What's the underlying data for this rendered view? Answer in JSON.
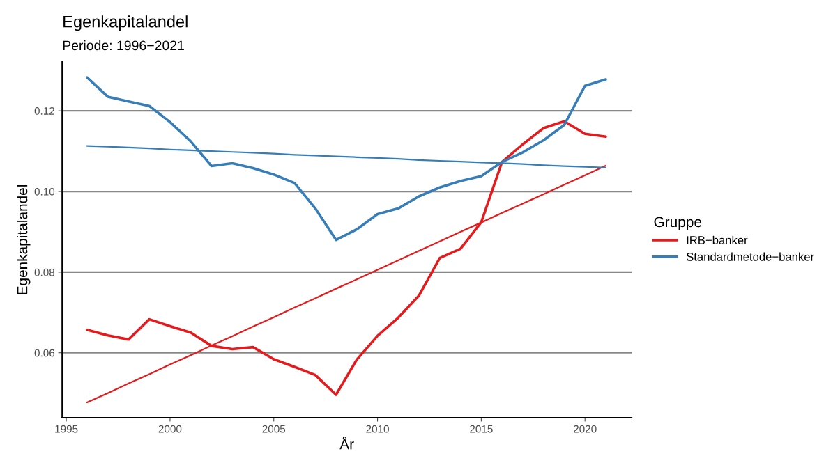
{
  "chart_data": {
    "type": "line",
    "title": "Egenkapitalandel",
    "subtitle": "Periode: 1996−2021",
    "xlabel": "År",
    "ylabel": "Egenkapitalandel",
    "legend_title": "Gruppe",
    "x": [
      1996,
      1997,
      1998,
      1999,
      2000,
      2001,
      2002,
      2003,
      2004,
      2005,
      2006,
      2007,
      2008,
      2009,
      2010,
      2011,
      2012,
      2013,
      2014,
      2015,
      2016,
      2017,
      2018,
      2019,
      2020,
      2021
    ],
    "series": [
      {
        "name": "IRB−banker",
        "color": "#e41a1c",
        "values": [
          0.0657,
          0.0643,
          0.0633,
          0.0683,
          0.0666,
          0.065,
          0.0617,
          0.0609,
          0.0614,
          0.0584,
          0.0565,
          0.0545,
          0.0496,
          0.0583,
          0.0642,
          0.0687,
          0.0742,
          0.0835,
          0.0858,
          0.0924,
          0.1073,
          0.1117,
          0.1157,
          0.1174,
          0.1143,
          0.1136
        ]
      },
      {
        "name": "Standardmetode−banker",
        "color": "#377eb8",
        "values": [
          0.1283,
          0.1235,
          0.1223,
          0.1212,
          0.1172,
          0.1124,
          0.1063,
          0.107,
          0.1058,
          0.1042,
          0.1021,
          0.0958,
          0.088,
          0.0906,
          0.0944,
          0.0958,
          0.0988,
          0.101,
          0.1026,
          0.1038,
          0.1073,
          0.1097,
          0.1127,
          0.1165,
          0.1262,
          0.1278
        ]
      },
      {
        "color": "#e41a1c",
        "values": [
          0.0477,
          0.05,
          0.0524,
          0.0547,
          0.0571,
          0.0594,
          0.0618,
          0.0641,
          0.0665,
          0.0688,
          0.0712,
          0.0735,
          0.0759,
          0.0782,
          0.0806,
          0.0829,
          0.0853,
          0.0876,
          0.09,
          0.0923,
          0.0947,
          0.097,
          0.0993,
          0.1017,
          0.104,
          0.1064
        ]
      },
      {
        "color": "#377eb8",
        "values": [
          0.1113,
          0.1111,
          0.1109,
          0.1107,
          0.1104,
          0.1102,
          0.11,
          0.1098,
          0.1096,
          0.1094,
          0.1091,
          0.1089,
          0.1087,
          0.1085,
          0.1083,
          0.1081,
          0.1078,
          0.1076,
          0.1074,
          0.1072,
          0.107,
          0.1068,
          0.1065,
          0.1063,
          0.1061,
          0.1059
        ]
      }
    ],
    "xlim": [
      1994.8,
      2022.25
    ],
    "ylim": [
      0.0439,
      0.1321
    ],
    "xticks": [
      1995,
      2000,
      2005,
      2010,
      2015,
      2020
    ],
    "yticks": [
      {
        "value": 0.06,
        "label": "0.06"
      },
      {
        "value": 0.08,
        "label": "0.08"
      },
      {
        "value": 0.1,
        "label": "0.10"
      },
      {
        "value": 0.12,
        "label": "0.12"
      }
    ],
    "grid": "y",
    "legend": "right"
  }
}
